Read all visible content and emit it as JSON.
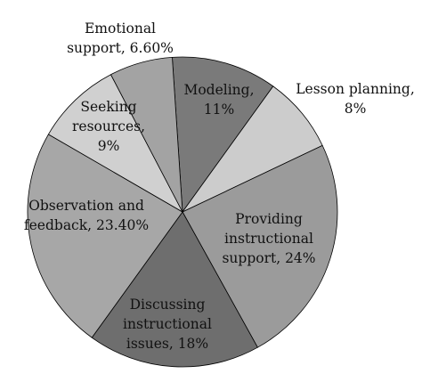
{
  "chart_data": {
    "type": "pie",
    "title": "",
    "series": [
      {
        "slices": [
          {
            "label": "Modeling, 11%",
            "value": 11,
            "color": "#7a7a7a"
          },
          {
            "label": "Lesson planning, 8%",
            "value": 8,
            "color": "#cccccc"
          },
          {
            "label": "Providing instructional support, 24%",
            "value": 24,
            "color": "#9b9b9b"
          },
          {
            "label": "Discussing instructional issues, 18%",
            "value": 18,
            "color": "#6e6e6e"
          },
          {
            "label": "Observation and feedback, 23.40%",
            "value": 23.4,
            "color": "#a7a7a7"
          },
          {
            "label": "Seeking resources, 9%",
            "value": 9,
            "color": "#d0d0d0"
          },
          {
            "label": "Emotional support, 6.60%",
            "value": 6.6,
            "color": "#a3a3a3"
          }
        ]
      }
    ],
    "label_lines": [
      [
        "Modeling,",
        "11%"
      ],
      [
        "Lesson planning,",
        "8%"
      ],
      [
        "Providing",
        "instructional",
        "support, 24%"
      ],
      [
        "Discussing",
        "instructional",
        "issues, 18%"
      ],
      [
        "Observation and",
        "feedback, 23.40%"
      ],
      [
        "Seeking",
        "resources,",
        "9%"
      ],
      [
        "Emotional",
        "support, 6.60%"
      ]
    ]
  }
}
